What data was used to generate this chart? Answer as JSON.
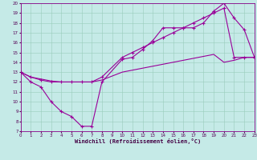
{
  "xlabel": "Windchill (Refroidissement éolien,°C)",
  "bg_color": "#c5eae7",
  "grid_color": "#99ccbb",
  "line_color": "#990099",
  "xlim": [
    0,
    23
  ],
  "ylim": [
    7,
    20
  ],
  "xticks": [
    0,
    1,
    2,
    3,
    4,
    5,
    6,
    7,
    8,
    9,
    10,
    11,
    12,
    13,
    14,
    15,
    16,
    17,
    18,
    19,
    20,
    21,
    22,
    23
  ],
  "yticks": [
    7,
    8,
    9,
    10,
    11,
    12,
    13,
    14,
    15,
    16,
    17,
    18,
    19,
    20
  ],
  "line1_x": [
    0,
    1,
    2,
    3,
    4,
    5,
    6,
    7,
    8,
    10,
    11,
    12,
    13,
    14,
    15,
    16,
    17,
    18,
    19,
    20,
    21,
    22,
    23
  ],
  "line1_y": [
    13,
    12,
    11.5,
    10,
    9,
    8.5,
    7.5,
    7.5,
    12,
    14.3,
    14.5,
    15.3,
    16.2,
    17.5,
    17.5,
    17.5,
    17.5,
    18,
    19.2,
    20,
    18.5,
    17.3,
    14.5
  ],
  "line2_x": [
    0,
    1,
    2,
    3,
    4,
    5,
    6,
    7,
    8,
    10,
    11,
    12,
    13,
    14,
    15,
    16,
    17,
    18,
    19,
    20,
    21,
    22,
    23
  ],
  "line2_y": [
    13,
    12.5,
    12.2,
    12,
    12,
    12,
    12,
    12,
    12.5,
    14.5,
    15,
    15.5,
    16,
    16.5,
    17,
    17.5,
    18,
    18.5,
    19,
    19.5,
    14.5,
    14.5,
    14.5
  ],
  "line3_x": [
    0,
    1,
    2,
    3,
    4,
    5,
    6,
    7,
    8,
    10,
    11,
    12,
    13,
    14,
    15,
    16,
    17,
    18,
    19,
    20,
    21,
    22,
    23
  ],
  "line3_y": [
    13,
    12.5,
    12.3,
    12.1,
    12,
    12,
    12,
    12,
    12.2,
    13,
    13.2,
    13.4,
    13.6,
    13.8,
    14,
    14.2,
    14.4,
    14.6,
    14.8,
    14,
    14.2,
    14.5,
    14.5
  ]
}
